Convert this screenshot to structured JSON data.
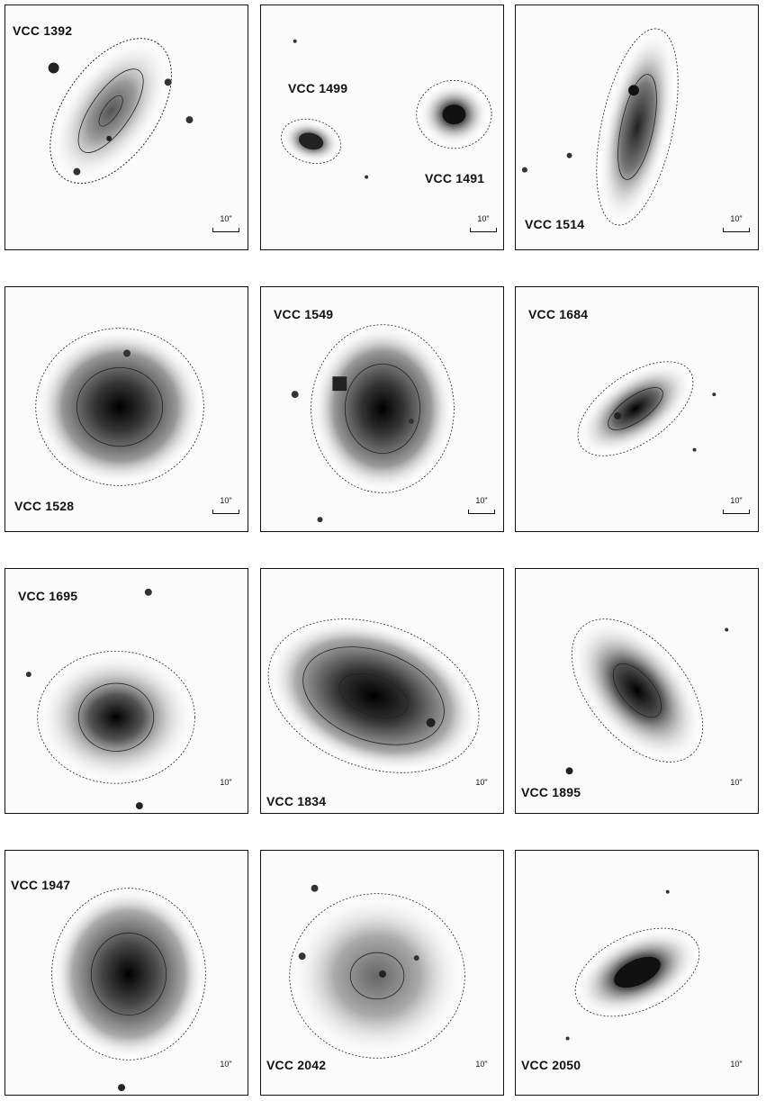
{
  "figure": {
    "panels": [
      {
        "id": "p1",
        "labels": [
          "VCC 1392"
        ],
        "scale_text": "10\"",
        "scale_bar": true
      },
      {
        "id": "p2",
        "labels": [
          "VCC 1499",
          "VCC 1491"
        ],
        "scale_text": "10\"",
        "scale_bar": true
      },
      {
        "id": "p3",
        "labels": [
          "VCC 1514"
        ],
        "scale_text": "10\"",
        "scale_bar": true
      },
      {
        "id": "p4",
        "labels": [
          "VCC 1528"
        ],
        "scale_text": "10\"",
        "scale_bar": true
      },
      {
        "id": "p5",
        "labels": [
          "VCC 1549"
        ],
        "scale_text": "10\"",
        "scale_bar": true
      },
      {
        "id": "p6",
        "labels": [
          "VCC 1684"
        ],
        "scale_text": "10\"",
        "scale_bar": true
      },
      {
        "id": "p7",
        "labels": [
          "VCC 1695"
        ],
        "scale_text": "10\"",
        "scale_bar": false
      },
      {
        "id": "p8",
        "labels": [
          "VCC 1834"
        ],
        "scale_text": "10\"",
        "scale_bar": false
      },
      {
        "id": "p9",
        "labels": [
          "VCC 1895"
        ],
        "scale_text": "10\"",
        "scale_bar": false
      },
      {
        "id": "p10",
        "labels": [
          "VCC 1947"
        ],
        "scale_text": "10\"",
        "scale_bar": false
      },
      {
        "id": "p11",
        "labels": [
          "VCC 2042"
        ],
        "scale_text": "10\"",
        "scale_bar": false
      },
      {
        "id": "p12",
        "labels": [
          "VCC 2050"
        ],
        "scale_text": "10\"",
        "scale_bar": false
      }
    ]
  }
}
